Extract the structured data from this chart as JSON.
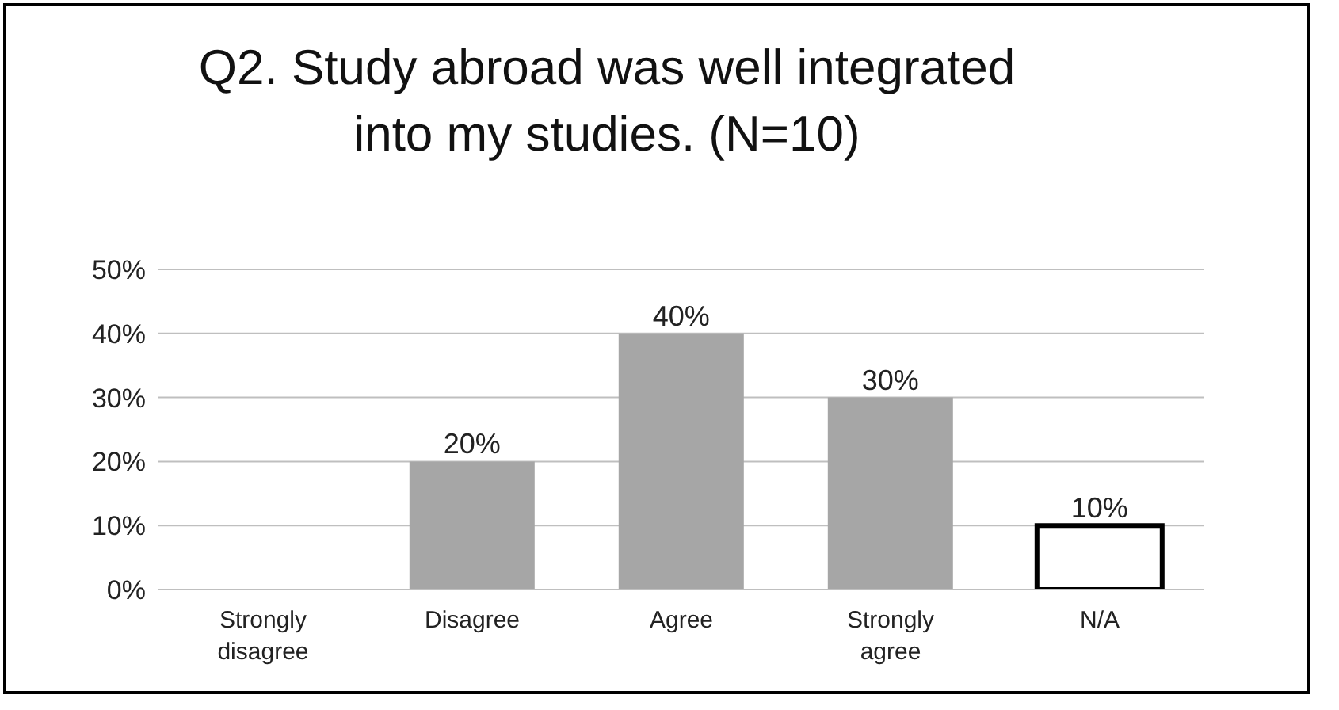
{
  "chart_data": {
    "type": "bar",
    "title": "Q2. Study abroad was well integrated into my studies. (N=10)",
    "categories": [
      "Strongly disagree",
      "Disagree",
      "Agree",
      "Strongly agree",
      "N/A"
    ],
    "values": [
      0,
      20,
      40,
      30,
      10
    ],
    "colors": [
      "#a6a6a6",
      "#a6a6a6",
      "#a6a6a6",
      "#a6a6a6",
      "#ffffff"
    ],
    "value_labels": [
      null,
      "20%",
      "40%",
      "30%",
      "10%"
    ],
    "ylim": [
      0,
      50
    ],
    "yticks": [
      {
        "value": 0,
        "label": "0%"
      },
      {
        "value": 10,
        "label": "10%"
      },
      {
        "value": 20,
        "label": "20%"
      },
      {
        "value": 30,
        "label": "30%"
      },
      {
        "value": 40,
        "label": "40%"
      },
      {
        "value": 50,
        "label": "50%"
      }
    ],
    "grid": "y"
  }
}
